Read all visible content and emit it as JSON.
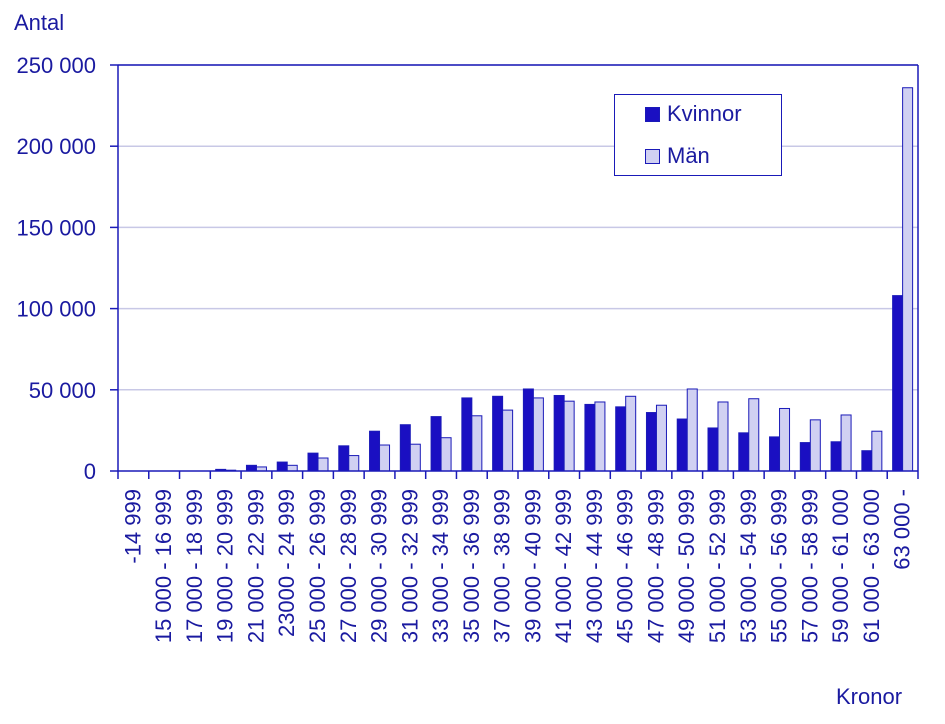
{
  "chart_data": {
    "type": "bar",
    "ylabel": "Antal",
    "xlabel": "Kronor",
    "ylim": [
      0,
      250000
    ],
    "yticks": [
      "0",
      "50 000",
      "100 000",
      "150 000",
      "200 000",
      "250 000"
    ],
    "ytick_values": [
      0,
      50000,
      100000,
      150000,
      200000,
      250000
    ],
    "grid": true,
    "legend_position": "top-right",
    "categories": [
      "-14 999",
      "15 000 - 16 999",
      "17 000 - 18 999",
      "19 000 - 20 999",
      "21 000 - 22 999",
      "23000 - 24 999",
      "25 000 - 26 999",
      "27 000 - 28 999",
      "29 000 - 30 999",
      "31 000 - 32 999",
      "33 000 - 34 999",
      "35 000 - 36 999",
      "37 000 - 38 999",
      "39 000 - 40 999",
      "41 000 - 42 999",
      "43 000 - 44 999",
      "45 000 - 46 999",
      "47 000 - 48 999",
      "49 000 - 50 999",
      "51 000 - 52 999",
      "53 000 - 54 999",
      "55 000 - 56 999",
      "57 000 - 58 999",
      "59 000 - 61 000",
      "61 000 - 63 000",
      "63 000 -"
    ],
    "series": [
      {
        "name": "Kvinnor",
        "color": "#1a0fc2",
        "values": [
          0,
          0,
          0,
          1000,
          3500,
          5500,
          11000,
          15500,
          24500,
          28500,
          33500,
          45000,
          46000,
          50500,
          46500,
          41000,
          39500,
          36000,
          32000,
          26500,
          23500,
          21000,
          17500,
          18000,
          12500,
          108000
        ]
      },
      {
        "name": "Män",
        "color": "#d0d0f2",
        "values": [
          0,
          0,
          0,
          500,
          2500,
          3500,
          8000,
          9500,
          16000,
          16500,
          20500,
          34000,
          37500,
          45000,
          43000,
          42500,
          46000,
          40500,
          50500,
          42500,
          44500,
          38500,
          31500,
          34500,
          24500,
          236000
        ]
      }
    ]
  }
}
